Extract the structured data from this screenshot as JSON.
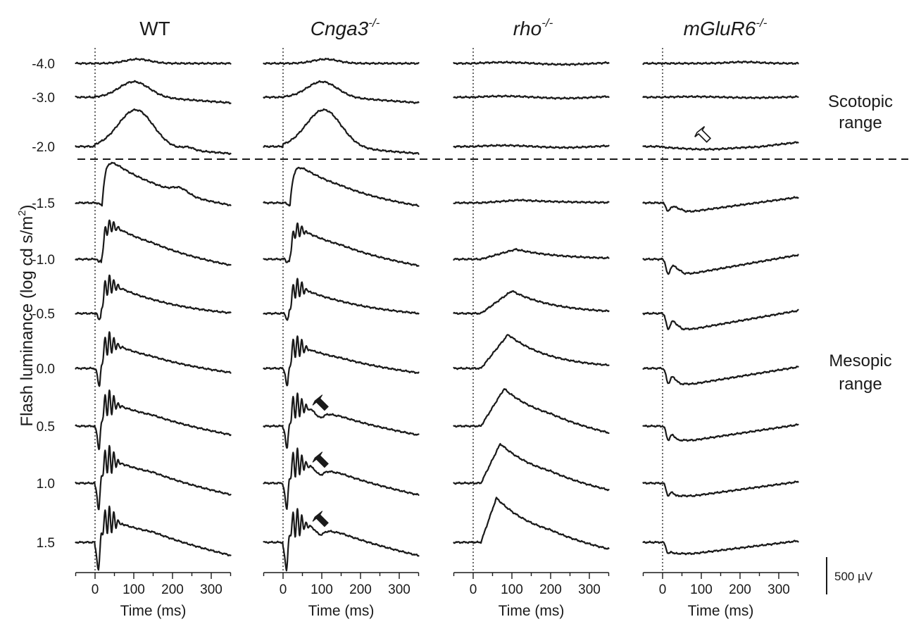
{
  "chart_data": {
    "type": "line",
    "panel_titles": [
      {
        "base": "WT",
        "sup": "",
        "italic": false
      },
      {
        "base": "Cnga3",
        "sup": "-/-",
        "italic": true
      },
      {
        "base": "rho",
        "sup": "-/-",
        "italic": true
      },
      {
        "base": "mGluR6",
        "sup": "-/-",
        "italic": true
      }
    ],
    "ylabel_main": "Flash luminance (log cd s/m",
    "ylabel_sup": "2",
    "ylabel_end": ")",
    "flash_luminances": [
      "-4.0",
      "-3.0",
      "-2.0",
      "-1.5",
      "-1.0",
      "-0.5",
      "0.0",
      "0.5",
      "1.0",
      "1.5"
    ],
    "xlabel": "Time (ms)",
    "xticks": [
      "0",
      "100",
      "200",
      "300"
    ],
    "xlim": [
      -50,
      350
    ],
    "range_labels": [
      {
        "lines": [
          "Scotopic",
          "range"
        ]
      },
      {
        "lines": [
          "Mesopic",
          "range"
        ]
      }
    ],
    "scale_bar_label": "500 µV",
    "scale_bar_uV": 500,
    "annotations": {
      "open_arrow": {
        "panel": 3,
        "trace": 2,
        "time_ms": 100
      },
      "filled_arrows": [
        {
          "panel": 1,
          "trace": 7,
          "time_ms": 95
        },
        {
          "panel": 1,
          "trace": 8,
          "time_ms": 95
        },
        {
          "panel": 1,
          "trace": 9,
          "time_ms": 95
        }
      ]
    }
  }
}
